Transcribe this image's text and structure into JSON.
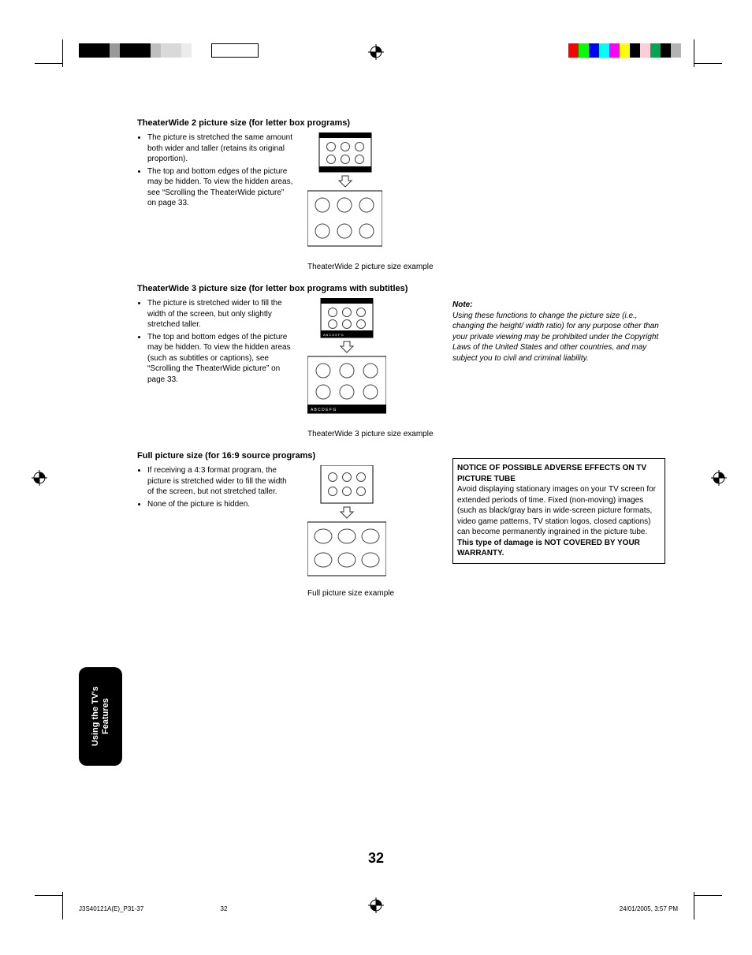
{
  "sections": {
    "tw2": {
      "heading": "TheaterWide 2 picture size (for letter box programs)",
      "bullets": [
        "The picture is stretched the same amount both wider and taller (retains its original proportion).",
        "The top and bottom edges of the picture may be hidden. To view the hidden areas, see “Scrolling the TheaterWide picture” on page 33."
      ],
      "caption": "TheaterWide 2 picture size example"
    },
    "tw3": {
      "heading": "TheaterWide 3 picture size (for letter box programs with subtitles)",
      "bullets": [
        "The picture is stretched wider to fill the width of the screen, but only slightly stretched taller.",
        "The top and bottom edges of the picture may be hidden. To view the hidden areas (such as subtitles or captions), see “Scrolling the TheaterWide picture” on page 33."
      ],
      "caption": "TheaterWide 3 picture size example",
      "subtitle_text": "A B C D E F G"
    },
    "full": {
      "heading": "Full picture size (for 16:9 source programs)",
      "bullets": [
        "If receiving a 4:3 format program, the picture is stretched wider to fill the width of the screen, but not stretched taller.",
        "None of the picture is hidden."
      ],
      "caption": "Full picture size example"
    }
  },
  "note": {
    "title": "Note:",
    "body": "Using these functions to change the picture size (i.e., changing the height/ width ratio) for any purpose other than your private viewing may be prohibited under the Copyright Laws of the United States and other countries, and may subject you to civil and criminal liability."
  },
  "warranty": {
    "headline": "NOTICE OF POSSIBLE ADVERSE EFFECTS ON TV PICTURE TUBE",
    "body_pre": "Avoid displaying stationary images on your TV screen for extended periods of time. Fixed (non-moving) images (such as black/gray bars in wide-screen picture formats, video game patterns, TV station logos, closed captions) can become permanently ingrained in the picture tube. ",
    "body_bold": "This type of damage is NOT COVERED BY YOUR WARRANTY."
  },
  "side_tab": "Using the TV’s\nFeatures",
  "page_number": "32",
  "footer": {
    "left": "J3S40121A(E)_P31-37",
    "mid": "32",
    "right": "24/01/2005, 3:57 PM"
  },
  "styling": {
    "circle_stroke": "#444444",
    "letterbox_fill": "#000000",
    "arrow_stroke": "#333333",
    "reg_colors_right": [
      "#ff0000",
      "#00ff00",
      "#0000ff",
      "#00ffff",
      "#ff00ff",
      "#ffff00",
      "#000000",
      "#ffccd8",
      "#00a651",
      "#000000",
      "#b3b3b3"
    ],
    "reg_greys_left": [
      "#000000",
      "#000000",
      "#000000",
      "#999999",
      "#000000",
      "#000000",
      "#000000",
      "#bfbfbf",
      "#d9d9d9",
      "#d9d9d9",
      "#ececec",
      "#ffffff",
      "#ffffff"
    ]
  }
}
